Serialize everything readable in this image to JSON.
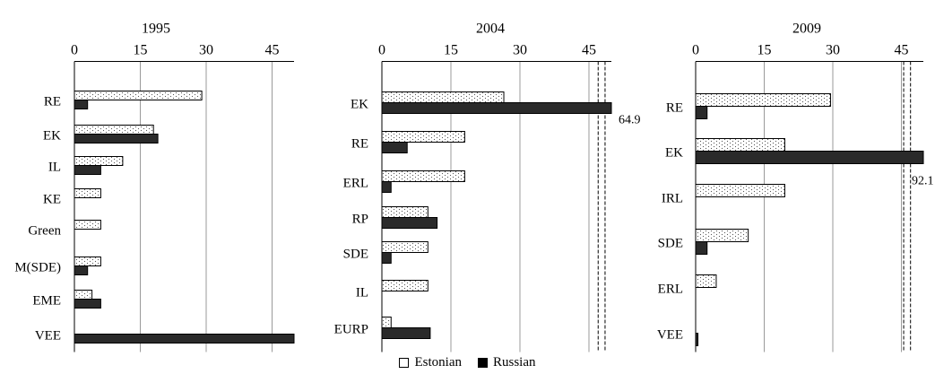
{
  "legend": {
    "estonian": "Estonian",
    "russian": "Russian"
  },
  "colors": {
    "estonian_fill": "#ffffff",
    "russian_fill": "#2a2a2a",
    "dot": "#555555",
    "grid": "#9a9a9a"
  },
  "chart_data": [
    {
      "type": "bar",
      "title": "1995",
      "xticks": [
        "0",
        "15",
        "30",
        "45"
      ],
      "xlim": [
        0,
        50
      ],
      "categories": [
        "RE",
        "EK",
        "IL",
        "KE",
        "Green",
        "M(SDE)",
        "EME",
        "VEE"
      ],
      "series": [
        {
          "name": "Estonian",
          "values": [
            29,
            18,
            11,
            6,
            6,
            6,
            4,
            0
          ]
        },
        {
          "name": "Russian",
          "values": [
            3,
            19,
            6,
            0,
            0,
            3,
            6,
            50
          ]
        }
      ],
      "grid": true,
      "legend_position": "bottom-center"
    },
    {
      "type": "bar",
      "title": "2004",
      "xticks": [
        "0",
        "15",
        "30",
        "45"
      ],
      "xlim": [
        0,
        50
      ],
      "axis_break": [
        47,
        48.5
      ],
      "categories": [
        "EK",
        "RE",
        "ERL",
        "RP",
        "SDE",
        "IL",
        "EURP"
      ],
      "series": [
        {
          "name": "Estonian",
          "values": [
            26.5,
            18,
            18,
            10,
            10,
            10,
            2
          ]
        },
        {
          "name": "Russian",
          "values": [
            64.9,
            5.5,
            2,
            12,
            2,
            0,
            10.5
          ]
        }
      ],
      "annotations": [
        "64.9"
      ],
      "grid": true
    },
    {
      "type": "bar",
      "title": "2009",
      "xticks": [
        "0",
        "15",
        "30",
        "45"
      ],
      "xlim": [
        0,
        50
      ],
      "axis_break": [
        45.5,
        47
      ],
      "categories": [
        "RE",
        "EK",
        "IRL",
        "SDE",
        "ERL",
        "VEE"
      ],
      "series": [
        {
          "name": "Estonian",
          "values": [
            29.5,
            19.5,
            19.5,
            11.5,
            4.5,
            0
          ]
        },
        {
          "name": "Russian",
          "values": [
            2.5,
            92.1,
            0,
            2.5,
            0,
            0.5
          ]
        }
      ],
      "annotations": [
        "92.1"
      ],
      "grid": true
    }
  ]
}
